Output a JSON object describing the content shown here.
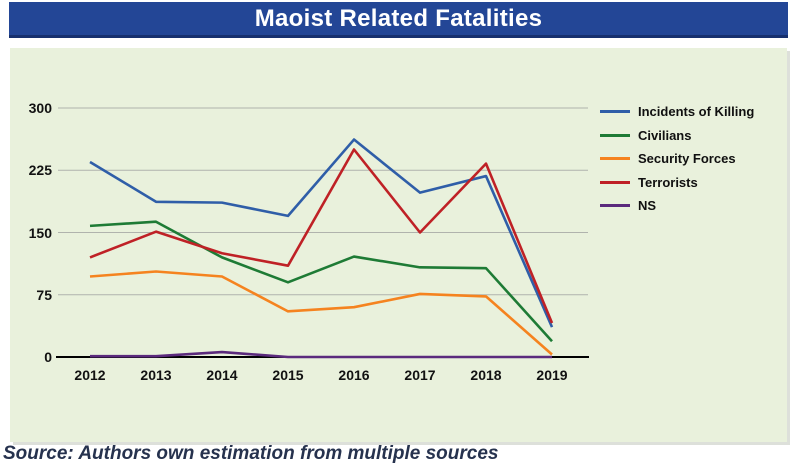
{
  "header": {
    "title": "Maoist Related Fatalities"
  },
  "source_note": "Source: Authors own estimation from multiple sources",
  "colors": {
    "title_bar_bg": "#234696",
    "title_text": "#ffffff",
    "panel_bg": "#e9f1dc",
    "grid_line": "#b0b3ad",
    "axis_line": "#000000",
    "source_text": "#26324e"
  },
  "chart_data": {
    "type": "line",
    "title": "Maoist Related Fatalities",
    "xlabel": "",
    "ylabel": "",
    "categories": [
      "2012",
      "2013",
      "2014",
      "2015",
      "2016",
      "2017",
      "2018",
      "2019"
    ],
    "series": [
      {
        "name": "Incidents of Killing",
        "color": "#2f5ea8",
        "values": [
          235,
          187,
          186,
          170,
          262,
          198,
          218,
          36
        ]
      },
      {
        "name": "Civilians",
        "color": "#1e7b35",
        "values": [
          158,
          163,
          120,
          90,
          121,
          108,
          107,
          19
        ]
      },
      {
        "name": "Security Forces",
        "color": "#f5831f",
        "values": [
          97,
          103,
          97,
          55,
          60,
          76,
          73,
          3
        ]
      },
      {
        "name": "Terrorists",
        "color": "#bf2126",
        "values": [
          120,
          151,
          125,
          110,
          250,
          150,
          233,
          41
        ]
      },
      {
        "name": "NS",
        "color": "#5b2a7d",
        "values": [
          1,
          1,
          6,
          0,
          0,
          0,
          0,
          0
        ]
      }
    ],
    "ylim": [
      0,
      300
    ],
    "yticks": [
      0,
      75,
      150,
      225,
      300
    ],
    "grid": true,
    "legend_position": "right"
  }
}
